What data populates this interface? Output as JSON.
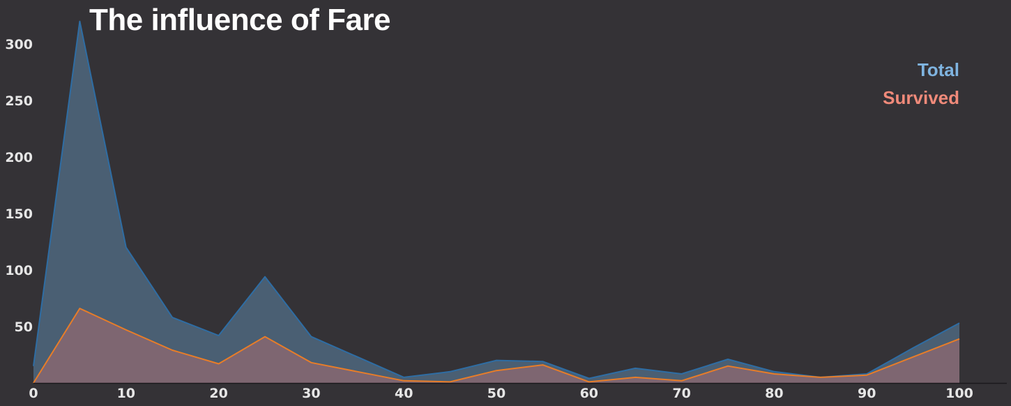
{
  "chart_data": {
    "type": "area",
    "title": "The influence of Fare",
    "xlabel": "",
    "ylabel": "",
    "x": [
      0,
      5,
      10,
      15,
      20,
      25,
      30,
      35,
      40,
      45,
      50,
      55,
      60,
      65,
      70,
      75,
      80,
      85,
      90,
      95,
      100
    ],
    "xticks": [
      0,
      10,
      20,
      30,
      40,
      50,
      60,
      70,
      80,
      90,
      100
    ],
    "yticks": [
      50,
      100,
      150,
      200,
      250,
      300
    ],
    "xlim": [
      0,
      105
    ],
    "ylim": [
      0,
      322
    ],
    "grid": false,
    "legend_position": "top-right",
    "series": [
      {
        "name": "Total",
        "color": "#2e6da4",
        "fill": "#4a5f73",
        "label_color": "#7fb4e0",
        "values": [
          15,
          320,
          120,
          58,
          42,
          94,
          41,
          23,
          5,
          10,
          20,
          19,
          4,
          13,
          8,
          21,
          10,
          5,
          8,
          31,
          53
        ]
      },
      {
        "name": "Survived",
        "color": "#e87d28",
        "fill": "#7e6671",
        "label_color": "#f08a7a",
        "values": [
          0,
          66,
          47,
          29,
          17,
          41,
          18,
          10,
          2,
          1,
          11,
          16,
          1,
          5,
          2,
          15,
          8,
          5,
          7,
          23,
          39
        ]
      }
    ]
  }
}
